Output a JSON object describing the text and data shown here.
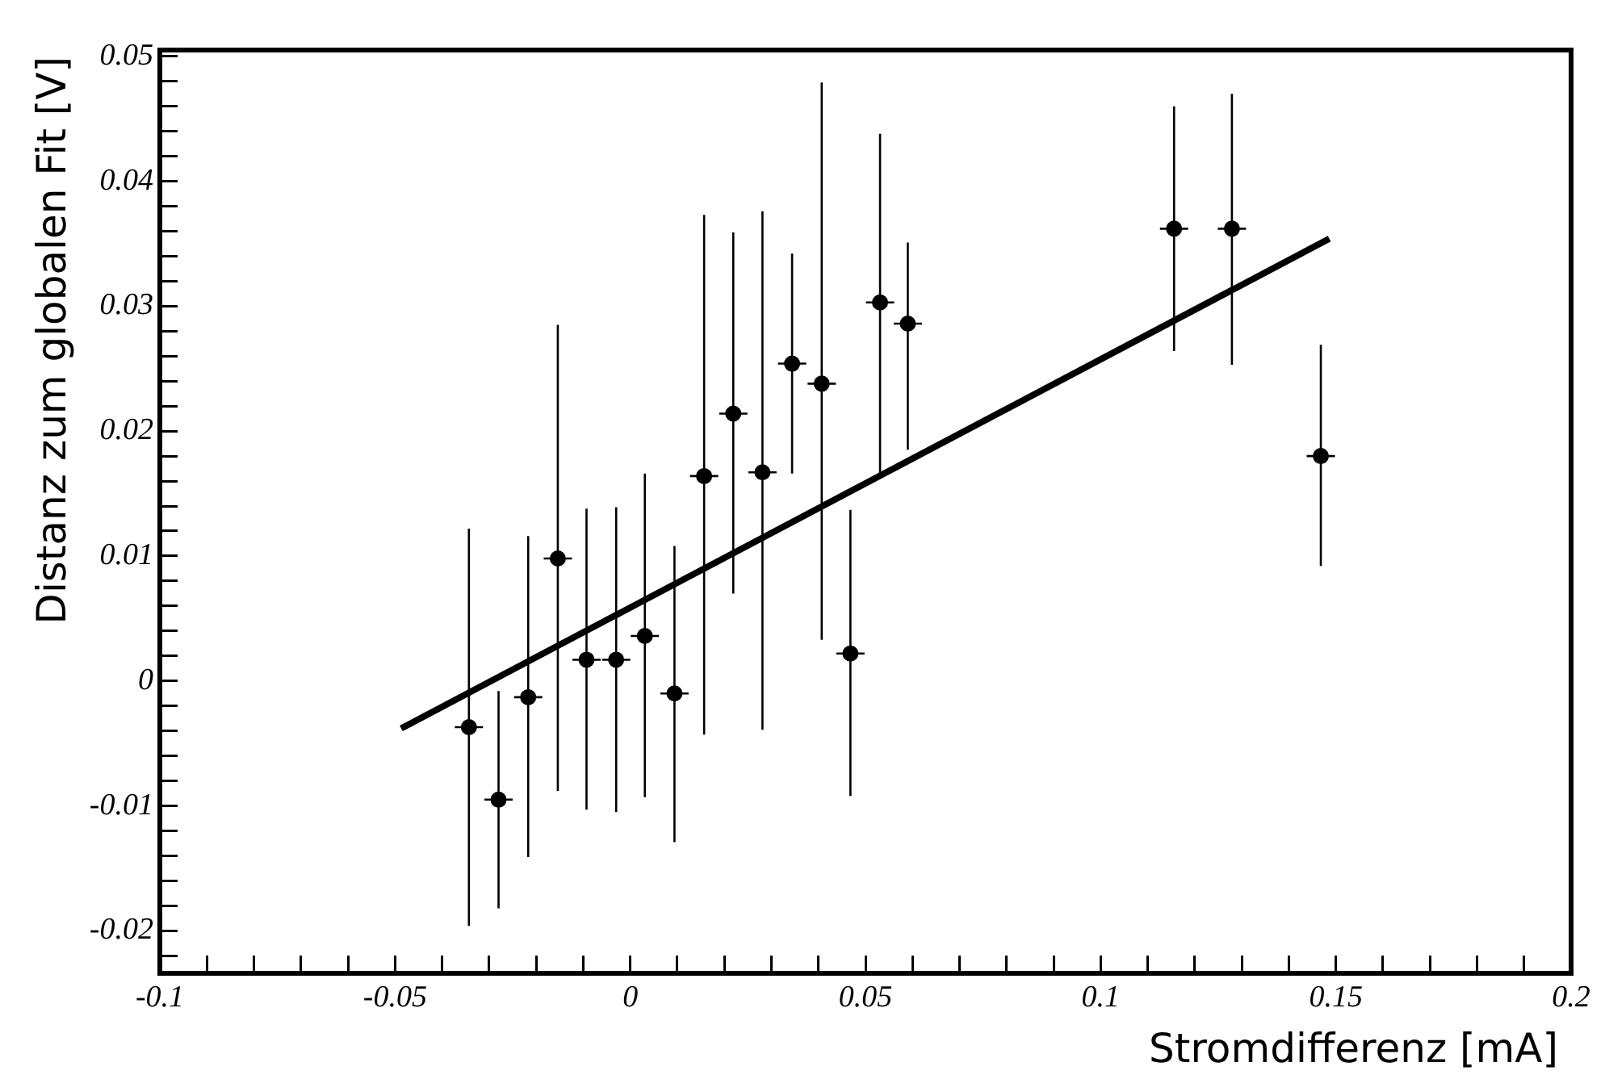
{
  "chart_data": {
    "type": "scatter",
    "xlabel": "Stromdifferenz [mA]",
    "ylabel": "Distanz zum globalen Fit [V]",
    "xlim": [
      -0.1,
      0.2
    ],
    "ylim": [
      -0.0234,
      0.0505
    ],
    "xticks": [
      -0.1,
      {
        "value": -0.09,
        "label": null
      },
      {
        "value": -0.08,
        "label": null
      },
      {
        "value": -0.07,
        "label": null
      },
      {
        "value": -0.06,
        "label": null
      },
      -0.05,
      {
        "value": -0.04,
        "label": null
      },
      {
        "value": -0.03,
        "label": null
      },
      {
        "value": -0.02,
        "label": null
      },
      {
        "value": -0.01,
        "label": null
      },
      0,
      {
        "value": 0.01,
        "label": null
      },
      {
        "value": 0.02,
        "label": null
      },
      {
        "value": 0.03,
        "label": null
      },
      {
        "value": 0.04,
        "label": null
      },
      0.05,
      {
        "value": 0.06,
        "label": null
      },
      {
        "value": 0.07,
        "label": null
      },
      {
        "value": 0.08,
        "label": null
      },
      {
        "value": 0.09,
        "label": null
      },
      0.1,
      {
        "value": 0.11,
        "label": null
      },
      {
        "value": 0.12,
        "label": null
      },
      {
        "value": 0.13,
        "label": null
      },
      {
        "value": 0.14,
        "label": null
      },
      0.15,
      {
        "value": 0.16,
        "label": null
      },
      {
        "value": 0.17,
        "label": null
      },
      {
        "value": 0.18,
        "label": null
      },
      {
        "value": 0.19,
        "label": null
      },
      0.2
    ],
    "yticks": [
      {
        "value": -0.022,
        "label": null
      },
      -0.02,
      {
        "value": -0.018,
        "label": null
      },
      {
        "value": -0.016,
        "label": null
      },
      {
        "value": -0.014,
        "label": null
      },
      {
        "value": -0.012,
        "label": null
      },
      -0.01,
      {
        "value": -0.008,
        "label": null
      },
      {
        "value": -0.006,
        "label": null
      },
      {
        "value": -0.004,
        "label": null
      },
      {
        "value": -0.002,
        "label": null
      },
      0,
      {
        "value": 0.002,
        "label": null
      },
      {
        "value": 0.004,
        "label": null
      },
      {
        "value": 0.006,
        "label": null
      },
      {
        "value": 0.008,
        "label": null
      },
      0.01,
      {
        "value": 0.012,
        "label": null
      },
      {
        "value": 0.014,
        "label": null
      },
      {
        "value": 0.016,
        "label": null
      },
      {
        "value": 0.018,
        "label": null
      },
      0.02,
      {
        "value": 0.022,
        "label": null
      },
      {
        "value": 0.024,
        "label": null
      },
      {
        "value": 0.026,
        "label": null
      },
      {
        "value": 0.028,
        "label": null
      },
      0.03,
      {
        "value": 0.032,
        "label": null
      },
      {
        "value": 0.034,
        "label": null
      },
      {
        "value": 0.036,
        "label": null
      },
      {
        "value": 0.038,
        "label": null
      },
      0.04,
      {
        "value": 0.042,
        "label": null
      },
      {
        "value": 0.044,
        "label": null
      },
      {
        "value": 0.046,
        "label": null
      },
      {
        "value": 0.048,
        "label": null
      },
      0.05
    ],
    "grid": false,
    "legend": false,
    "marker": "circle",
    "series": [
      {
        "type": "scatter",
        "color": "#000000",
        "x": [
          -0.0343,
          -0.028,
          -0.0217,
          -0.0154,
          -0.0093,
          -0.003,
          0.0031,
          0.0094,
          0.0157,
          0.0219,
          0.0281,
          0.0344,
          0.0407,
          0.0468,
          0.0531,
          0.059,
          0.1156,
          0.1279,
          0.1468
        ],
        "values": [
          -0.0037,
          -0.0095,
          -0.0013,
          0.0098,
          0.0017,
          0.0017,
          0.0036,
          -0.001,
          0.0164,
          0.0214,
          0.0167,
          0.0254,
          0.0238,
          0.0022,
          0.0303,
          0.0286,
          0.0362,
          0.0362,
          0.018
        ],
        "errors": [
          [
            -0.0196,
            0.0122
          ],
          [
            -0.0182,
            -0.0008
          ],
          [
            -0.0141,
            0.0116
          ],
          [
            -0.0088,
            0.0285
          ],
          [
            -0.0103,
            0.0138
          ],
          [
            -0.0105,
            0.0139
          ],
          [
            -0.0093,
            0.0166
          ],
          [
            -0.0129,
            0.0108
          ],
          [
            -0.0043,
            0.0373
          ],
          [
            0.007,
            0.0359
          ],
          [
            -0.0039,
            0.0376
          ],
          [
            0.0166,
            0.0342
          ],
          [
            0.0033,
            0.0479
          ],
          [
            -0.0092,
            0.0137
          ],
          [
            0.0166,
            0.0438
          ],
          [
            0.0185,
            0.0351
          ],
          [
            0.0264,
            0.046
          ],
          [
            0.0253,
            0.047
          ],
          [
            0.0092,
            0.0269
          ]
        ],
        "xerrors": [
          0.003,
          0.003,
          0.003,
          0.003,
          0.003,
          0.003,
          0.003,
          0.003,
          0.003,
          0.003,
          0.003,
          0.003,
          0.003,
          0.003,
          0.003,
          0.003,
          0.003,
          0.003,
          0.003
        ]
      },
      {
        "type": "line",
        "color": "#000000",
        "x": [
          -0.0487,
          0.1486
        ],
        "values": [
          -0.0038,
          0.0354
        ],
        "marker": "none",
        "line_style": "solid"
      }
    ]
  }
}
